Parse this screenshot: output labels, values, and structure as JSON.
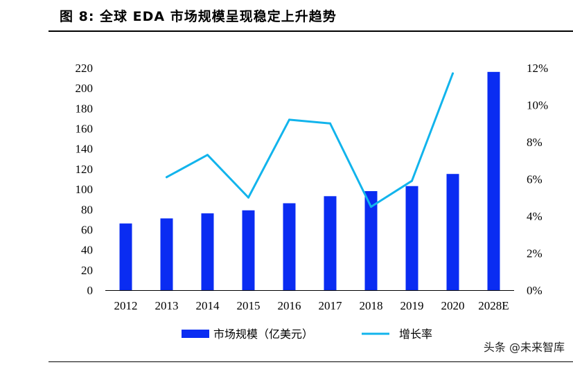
{
  "figure": {
    "title": "图 8:  全球 EDA 市场规模呈现稳定上升趋势"
  },
  "watermark": "头条 @未来智库",
  "colors": {
    "bar": "#0a2cf2",
    "line": "#12b4ec",
    "axis": "#000000"
  },
  "chart_data": {
    "type": "bar+line",
    "categories": [
      "2012",
      "2013",
      "2014",
      "2015",
      "2016",
      "2017",
      "2018",
      "2019",
      "2020",
      "2028E"
    ],
    "series": [
      {
        "name": "市场规模（亿美元）",
        "type": "bar",
        "axis": "left",
        "values": [
          66,
          71,
          76,
          79,
          86,
          93,
          98,
          103,
          115,
          216
        ]
      },
      {
        "name": "增长率",
        "type": "line",
        "axis": "right",
        "values": [
          null,
          6.1,
          7.3,
          5.0,
          9.2,
          9.0,
          4.5,
          5.9,
          11.7,
          null
        ]
      }
    ],
    "left_axis": {
      "ylim": [
        0,
        220
      ],
      "ticks": [
        "0",
        "20",
        "40",
        "60",
        "80",
        "100",
        "120",
        "140",
        "160",
        "180",
        "200",
        "220"
      ]
    },
    "right_axis": {
      "ylim": [
        0,
        12
      ],
      "ticks": [
        "0%",
        "2%",
        "4%",
        "6%",
        "8%",
        "10%",
        "12%"
      ]
    },
    "legend": [
      {
        "label": "市场规模（亿美元）",
        "kind": "bar"
      },
      {
        "label": "增长率",
        "kind": "line"
      }
    ],
    "legend_position": "bottom-center"
  }
}
